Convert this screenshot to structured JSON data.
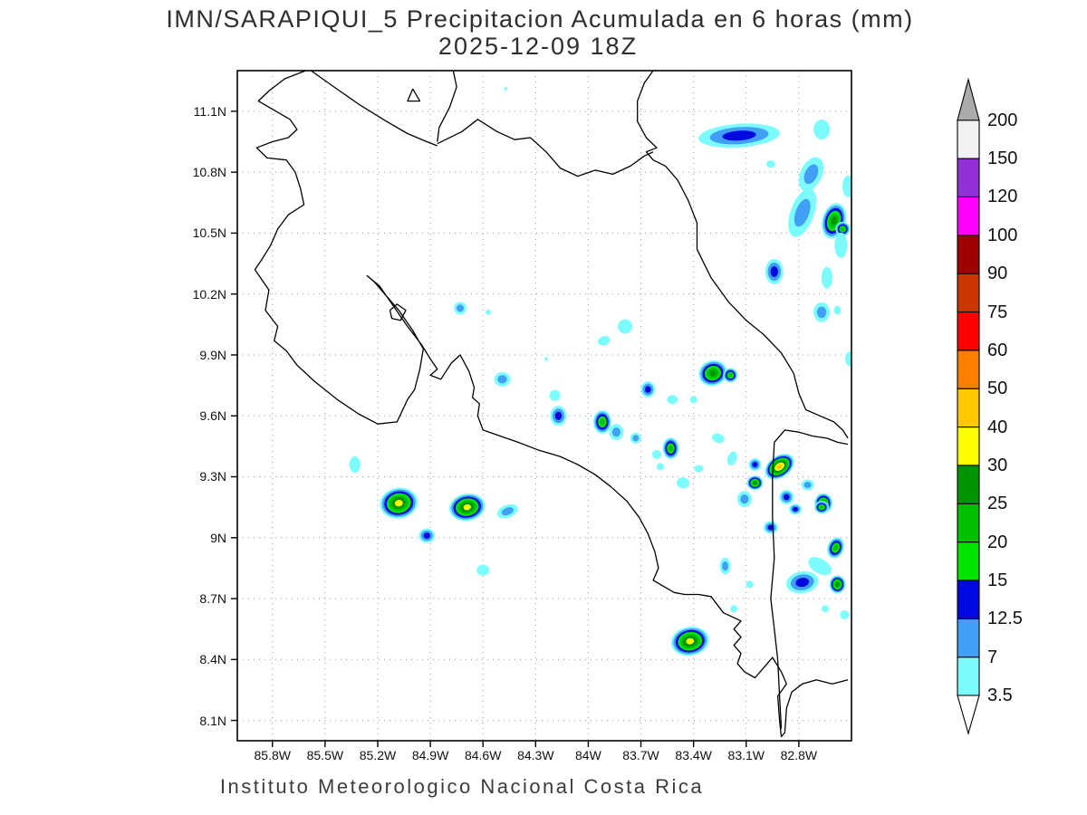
{
  "title": {
    "line1": "IMN/SARAPIQUI_5 Precipitacion Acumulada en 6 horas (mm)",
    "line2": "2025-12-09 18Z"
  },
  "footer": "Instituto Meteorologico Nacional Costa Rica",
  "chart_data": {
    "type": "heatmap",
    "title": "IMN/SARAPIQUI_5 Precipitacion Acumulada en 6 horas (mm)",
    "subtitle": "2025-12-09 18Z",
    "xlabel": "",
    "ylabel": "",
    "grid": true,
    "map_domain": {
      "lon_west": 86.0,
      "lon_east": 82.5,
      "lat_south": 8.0,
      "lat_north": 11.3
    },
    "x_ticks": {
      "labels": [
        "85.8W",
        "85.5W",
        "85.2W",
        "84.9W",
        "84.6W",
        "84.3W",
        "84W",
        "83.7W",
        "83.4W",
        "83.1W",
        "82.8W"
      ],
      "lons": [
        85.8,
        85.5,
        85.2,
        84.9,
        84.6,
        84.3,
        84.0,
        83.7,
        83.4,
        83.1,
        82.8
      ]
    },
    "y_ticks": {
      "labels": [
        "11.1N",
        "10.8N",
        "10.5N",
        "10.2N",
        "9.9N",
        "9.6N",
        "9.3N",
        "9N",
        "8.7N",
        "8.4N",
        "8.1N"
      ],
      "lats": [
        11.1,
        10.8,
        10.5,
        10.2,
        9.9,
        9.6,
        9.3,
        9.0,
        8.7,
        8.4,
        8.1
      ]
    },
    "colorbar": {
      "units": "mm",
      "levels": [
        3.5,
        7,
        12.5,
        15,
        20,
        25,
        30,
        40,
        50,
        60,
        75,
        90,
        100,
        120,
        150,
        200
      ],
      "labels": [
        "3.5",
        "7",
        "12.5",
        "15",
        "20",
        "25",
        "30",
        "40",
        "50",
        "60",
        "75",
        "90",
        "100",
        "120",
        "150",
        "200"
      ],
      "colors": [
        "#7DFCFF",
        "#41A0F5",
        "#0008E0",
        "#00E400",
        "#00C000",
        "#009400",
        "#FFFF00",
        "#FFC800",
        "#FF7F00",
        "#FF0000",
        "#CC3700",
        "#9E0000",
        "#FF00FF",
        "#9130D6",
        "#F2F2F2"
      ],
      "over_arrow_color": "#ABABAB",
      "under_arrow_color": "#FFFFFF"
    },
    "cells_format": [
      "lon_w",
      "lat_n",
      "rx_px",
      "ry_px",
      "rot_deg",
      "max_mm"
    ],
    "cells": [
      [
        83.14,
        10.98,
        45,
        13,
        -4,
        12.5
      ],
      [
        82.67,
        11.01,
        9,
        11,
        0,
        3.5
      ],
      [
        82.96,
        10.84,
        5,
        4,
        0,
        3.5
      ],
      [
        82.73,
        10.79,
        12,
        20,
        25,
        7
      ],
      [
        82.52,
        10.73,
        6,
        12,
        0,
        3.5
      ],
      [
        82.78,
        10.6,
        13,
        28,
        20,
        7
      ],
      [
        82.6,
        10.56,
        13,
        20,
        15,
        25
      ],
      [
        82.55,
        10.52,
        8,
        8,
        0,
        20
      ],
      [
        82.56,
        10.44,
        7,
        14,
        0,
        3.5
      ],
      [
        82.94,
        10.31,
        10,
        14,
        0,
        12.5
      ],
      [
        82.64,
        10.28,
        6,
        12,
        0,
        3.5
      ],
      [
        82.67,
        10.11,
        9,
        11,
        0,
        7
      ],
      [
        82.58,
        10.12,
        4,
        5,
        0,
        3.5
      ],
      [
        84.73,
        10.13,
        7,
        7,
        0,
        7
      ],
      [
        84.57,
        10.11,
        3,
        3,
        0,
        3.5
      ],
      [
        84.47,
        11.21,
        2,
        2,
        0,
        3.5
      ],
      [
        83.79,
        10.04,
        8,
        8,
        0,
        3.5
      ],
      [
        83.91,
        9.97,
        7,
        5,
        -20,
        3.5
      ],
      [
        84.24,
        9.88,
        2,
        2,
        0,
        3.5
      ],
      [
        84.49,
        9.78,
        9,
        8,
        0,
        7
      ],
      [
        84.19,
        9.7,
        6,
        6,
        0,
        3.5
      ],
      [
        84.17,
        9.6,
        9,
        11,
        0,
        12.5
      ],
      [
        83.29,
        9.81,
        16,
        14,
        -20,
        25
      ],
      [
        83.19,
        9.8,
        8,
        8,
        0,
        20
      ],
      [
        83.66,
        9.73,
        8,
        9,
        0,
        12.5
      ],
      [
        83.52,
        9.68,
        6,
        5,
        0,
        3.5
      ],
      [
        83.4,
        9.68,
        4,
        4,
        0,
        3.5
      ],
      [
        83.92,
        9.57,
        10,
        13,
        0,
        20
      ],
      [
        83.84,
        9.52,
        8,
        9,
        0,
        7
      ],
      [
        83.73,
        9.49,
        6,
        6,
        0,
        7
      ],
      [
        83.53,
        9.44,
        9,
        12,
        0,
        20
      ],
      [
        83.61,
        9.41,
        5,
        5,
        0,
        3.5
      ],
      [
        83.26,
        9.49,
        7,
        5,
        20,
        3.5
      ],
      [
        83.18,
        9.39,
        5,
        8,
        20,
        3.5
      ],
      [
        83.37,
        9.34,
        5,
        4,
        0,
        3.5
      ],
      [
        83.46,
        9.27,
        7,
        6,
        0,
        3.5
      ],
      [
        85.33,
        9.36,
        6,
        9,
        0,
        3.5
      ],
      [
        85.08,
        9.17,
        21,
        17,
        -10,
        30
      ],
      [
        84.69,
        9.15,
        20,
        15,
        -10,
        30
      ],
      [
        84.46,
        9.13,
        12,
        7,
        -20,
        7
      ],
      [
        84.92,
        9.01,
        9,
        8,
        0,
        12.5
      ],
      [
        84.6,
        8.84,
        7,
        6,
        0,
        3.5
      ],
      [
        82.91,
        9.35,
        18,
        12,
        -35,
        40
      ],
      [
        83.05,
        9.36,
        7,
        7,
        0,
        12.5
      ],
      [
        83.05,
        9.27,
        9,
        8,
        0,
        25
      ],
      [
        83.11,
        9.19,
        8,
        9,
        0,
        7
      ],
      [
        82.75,
        9.26,
        7,
        6,
        0,
        7
      ],
      [
        82.87,
        9.2,
        8,
        8,
        0,
        12.5
      ],
      [
        82.66,
        9.17,
        10,
        11,
        0,
        25
      ],
      [
        82.82,
        9.14,
        7,
        6,
        0,
        12.5
      ],
      [
        82.67,
        9.15,
        8,
        7,
        0,
        20
      ],
      [
        82.96,
        9.05,
        8,
        7,
        0,
        12.5
      ],
      [
        82.59,
        8.95,
        9,
        12,
        20,
        20
      ],
      [
        82.68,
        8.86,
        14,
        8,
        30,
        3.5
      ],
      [
        83.22,
        8.86,
        6,
        9,
        0,
        7
      ],
      [
        82.78,
        8.78,
        18,
        12,
        -10,
        12.5
      ],
      [
        82.58,
        8.77,
        9,
        10,
        0,
        25
      ],
      [
        83.08,
        8.77,
        4,
        4,
        0,
        3.5
      ],
      [
        83.17,
        8.65,
        4,
        4,
        0,
        3.5
      ],
      [
        82.65,
        8.65,
        4,
        4,
        0,
        3.5
      ],
      [
        82.54,
        8.62,
        5,
        5,
        0,
        3.5
      ],
      [
        83.42,
        8.49,
        21,
        16,
        -10,
        30
      ],
      [
        82.51,
        9.88,
        5,
        8,
        0,
        3.5
      ],
      [
        83.59,
        9.35,
        4,
        4,
        0,
        3.5
      ]
    ],
    "coastlines": [
      [
        [
          85.61,
          11.3
        ],
        [
          85.73,
          11.26
        ],
        [
          85.82,
          11.2
        ],
        [
          85.88,
          11.15
        ],
        [
          85.8,
          11.11
        ],
        [
          85.7,
          11.06
        ],
        [
          85.66,
          11.01
        ],
        [
          85.71,
          10.97
        ],
        [
          85.8,
          10.95
        ],
        [
          85.89,
          10.92
        ],
        [
          85.83,
          10.87
        ],
        [
          85.72,
          10.86
        ],
        [
          85.67,
          10.8
        ],
        [
          85.64,
          10.72
        ],
        [
          85.62,
          10.64
        ],
        [
          85.71,
          10.59
        ],
        [
          85.77,
          10.52
        ],
        [
          85.81,
          10.44
        ],
        [
          85.86,
          10.37
        ],
        [
          85.9,
          10.32
        ],
        [
          85.82,
          10.22
        ],
        [
          85.84,
          10.12
        ],
        [
          85.77,
          10.04
        ],
        [
          85.79,
          9.97
        ],
        [
          85.72,
          9.92
        ],
        [
          85.66,
          9.85
        ],
        [
          85.56,
          9.77
        ],
        [
          85.43,
          9.68
        ],
        [
          85.31,
          9.61
        ],
        [
          85.2,
          9.56
        ],
        [
          85.09,
          9.57
        ],
        [
          85.03,
          9.68
        ],
        [
          84.99,
          9.73
        ],
        [
          84.96,
          9.83
        ],
        [
          84.94,
          9.93
        ],
        [
          85.0,
          10.02
        ],
        [
          85.08,
          10.12
        ],
        [
          85.16,
          10.2
        ],
        [
          85.22,
          10.26
        ],
        [
          85.26,
          10.29
        ],
        [
          85.19,
          10.24
        ],
        [
          85.11,
          10.14
        ],
        [
          85.03,
          10.04
        ],
        [
          84.95,
          9.95
        ],
        [
          84.9,
          9.88
        ],
        [
          84.86,
          9.83
        ],
        [
          84.9,
          9.8
        ],
        [
          84.84,
          9.78
        ],
        [
          84.78,
          9.86
        ],
        [
          84.73,
          9.9
        ],
        [
          84.68,
          9.82
        ],
        [
          84.65,
          9.74
        ],
        [
          84.66,
          9.69
        ],
        [
          84.62,
          9.66
        ],
        [
          84.63,
          9.6
        ],
        [
          84.6,
          9.53
        ],
        [
          84.5,
          9.5
        ],
        [
          84.4,
          9.47
        ],
        [
          84.28,
          9.43
        ],
        [
          84.16,
          9.4
        ],
        [
          84.06,
          9.36
        ],
        [
          83.96,
          9.31
        ],
        [
          83.87,
          9.25
        ],
        [
          83.78,
          9.18
        ],
        [
          83.71,
          9.1
        ],
        [
          83.66,
          9.02
        ],
        [
          83.62,
          8.93
        ],
        [
          83.6,
          8.85
        ],
        [
          83.63,
          8.79
        ],
        [
          83.57,
          8.76
        ],
        [
          83.51,
          8.73
        ],
        [
          83.45,
          8.72
        ],
        [
          83.37,
          8.72
        ],
        [
          83.3,
          8.71
        ],
        [
          83.23,
          8.63
        ],
        [
          83.13,
          8.59
        ],
        [
          83.17,
          8.55
        ],
        [
          83.13,
          8.51
        ],
        [
          83.17,
          8.47
        ],
        [
          83.13,
          8.43
        ],
        [
          83.15,
          8.38
        ],
        [
          83.11,
          8.34
        ],
        [
          83.05,
          8.31
        ],
        [
          83.0,
          8.36
        ],
        [
          82.95,
          8.41
        ],
        [
          82.9,
          8.34
        ],
        [
          82.87,
          8.28
        ],
        [
          82.92,
          8.22
        ],
        [
          82.91,
          8.1
        ],
        [
          82.9,
          8.02
        ],
        [
          82.88,
          8.04
        ],
        [
          82.87,
          8.16
        ],
        [
          82.84,
          8.24
        ],
        [
          82.78,
          8.28
        ],
        [
          82.7,
          8.3
        ],
        [
          82.61,
          8.28
        ],
        [
          82.52,
          8.3
        ]
      ],
      [
        [
          83.63,
          11.3
        ],
        [
          83.68,
          11.24
        ],
        [
          83.72,
          11.15
        ],
        [
          83.72,
          11.05
        ],
        [
          83.67,
          10.97
        ],
        [
          83.61,
          10.92
        ],
        [
          83.67,
          10.9
        ],
        [
          83.63,
          10.86
        ],
        [
          83.56,
          10.83
        ],
        [
          83.49,
          10.76
        ],
        [
          83.43,
          10.66
        ],
        [
          83.38,
          10.55
        ],
        [
          83.38,
          10.42
        ],
        [
          83.3,
          10.28
        ],
        [
          83.2,
          10.16
        ],
        [
          83.1,
          10.07
        ],
        [
          83.0,
          10.0
        ],
        [
          82.9,
          9.91
        ],
        [
          82.83,
          9.81
        ],
        [
          82.8,
          9.71
        ],
        [
          82.76,
          9.63
        ],
        [
          82.68,
          9.6
        ],
        [
          82.6,
          9.57
        ],
        [
          82.55,
          9.53
        ],
        [
          82.52,
          9.49
        ]
      ],
      [
        [
          82.52,
          9.46
        ],
        [
          82.58,
          9.47
        ],
        [
          82.64,
          9.49
        ],
        [
          82.72,
          9.5
        ],
        [
          82.8,
          9.52
        ],
        [
          82.88,
          9.53
        ],
        [
          82.94,
          9.47
        ]
      ],
      [
        [
          82.94,
          9.47
        ],
        [
          82.95,
          9.3
        ],
        [
          82.95,
          9.1
        ],
        [
          82.94,
          8.9
        ],
        [
          82.96,
          8.7
        ],
        [
          82.94,
          8.55
        ],
        [
          82.92,
          8.4
        ],
        [
          82.91,
          8.22
        ],
        [
          82.9,
          8.06
        ]
      ],
      [
        [
          85.58,
          11.3
        ],
        [
          85.45,
          11.22
        ],
        [
          85.3,
          11.13
        ],
        [
          85.15,
          11.05
        ],
        [
          85.03,
          10.99
        ],
        [
          84.92,
          10.95
        ],
        [
          84.86,
          10.93
        ]
      ],
      [
        [
          84.77,
          11.3
        ],
        [
          84.75,
          11.22
        ],
        [
          84.79,
          11.12
        ],
        [
          84.85,
          11.02
        ],
        [
          84.86,
          10.95
        ]
      ],
      [
        [
          84.86,
          10.94
        ],
        [
          84.72,
          11.0
        ],
        [
          84.63,
          11.06
        ],
        [
          84.52,
          11.0
        ],
        [
          84.42,
          10.96
        ],
        [
          84.33,
          10.97
        ],
        [
          84.24,
          10.9
        ],
        [
          84.16,
          10.82
        ],
        [
          84.06,
          10.78
        ],
        [
          83.96,
          10.81
        ],
        [
          83.86,
          10.79
        ],
        [
          83.76,
          10.83
        ],
        [
          83.68,
          10.88
        ],
        [
          83.63,
          10.9
        ]
      ],
      [
        [
          85.0,
          11.21
        ],
        [
          84.96,
          11.15
        ],
        [
          85.03,
          11.15
        ],
        [
          85.0,
          11.21
        ]
      ],
      [
        [
          85.13,
          10.12
        ],
        [
          85.09,
          10.15
        ],
        [
          85.04,
          10.12
        ],
        [
          85.07,
          10.07
        ],
        [
          85.12,
          10.08
        ],
        [
          85.13,
          10.12
        ]
      ]
    ]
  }
}
